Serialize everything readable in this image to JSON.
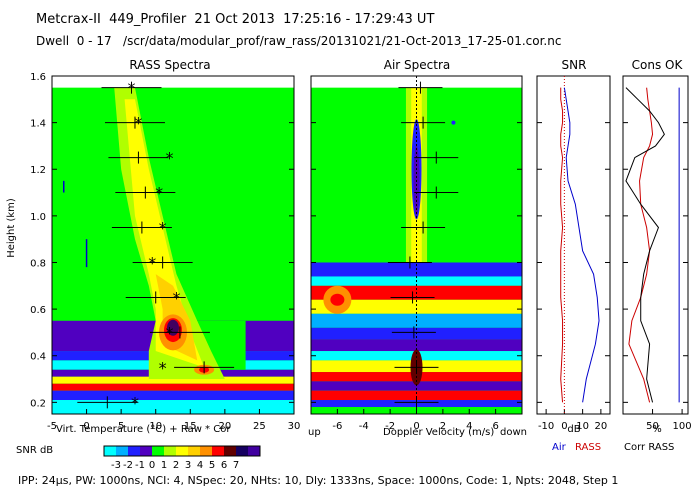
{
  "header": {
    "line1": "Metcrax-II  449_Profiler  21 Oct 2013  17:25:16 - 17:29:43 UT",
    "line2": "Dwell  0 - 17   /scr/data/modular_prof/raw_rass/20131021/21-Oct-2013_17-25-01.cor.nc"
  },
  "footer": "IPP: 24μs, PW: 1000ns, NCI: 4, NSpec: 20, NHts: 10, Dly: 1333ns, Space: 1000ns, Code: 1, Npts: 2048, Step 1",
  "chart_data": [
    {
      "type": "heatmap",
      "title": "RASS Spectra",
      "ylabel": "Height (km)",
      "xlabel": "Virt. Temperature (°C)  + Raw  * Cor",
      "xlim": [
        -5,
        30
      ],
      "ylim": [
        0.15,
        1.6
      ],
      "xticks": [
        "-5",
        "0",
        "5",
        "10",
        "15",
        "20",
        "25",
        "30"
      ],
      "yticks": [
        "0.2",
        "0.4",
        "0.6",
        "0.8",
        "1.0",
        "1.2",
        "1.4",
        "1.6"
      ],
      "raw": [
        {
          "height": 1.55,
          "temp": 6.5
        },
        {
          "height": 1.4,
          "temp": 7.0
        },
        {
          "height": 1.25,
          "temp": 7.5
        },
        {
          "height": 1.1,
          "temp": 8.5
        },
        {
          "height": 0.95,
          "temp": 8.0
        },
        {
          "height": 0.8,
          "temp": 11.0
        },
        {
          "height": 0.65,
          "temp": 10.0
        },
        {
          "height": 0.5,
          "temp": 13.5
        },
        {
          "height": 0.35,
          "temp": 17.0
        },
        {
          "height": 0.2,
          "temp": 3.0
        }
      ],
      "cor": [
        {
          "height": 1.55,
          "temp": 6.5
        },
        {
          "height": 1.4,
          "temp": 7.5
        },
        {
          "height": 1.25,
          "temp": 12.0
        },
        {
          "height": 1.1,
          "temp": 10.5
        },
        {
          "height": 0.95,
          "temp": 11.0
        },
        {
          "height": 0.8,
          "temp": 9.5
        },
        {
          "height": 0.65,
          "temp": 13.0
        },
        {
          "height": 0.5,
          "temp": 12.0
        },
        {
          "height": 0.35,
          "temp": 11.0
        },
        {
          "height": 0.2,
          "temp": 7.0
        }
      ]
    },
    {
      "type": "heatmap",
      "title": "Air Spectra",
      "xlabel": "Doppler Velocity (m/s)",
      "xlabel_left": "up",
      "xlabel_right": "down",
      "xlim": [
        -8,
        8
      ],
      "ylim": [
        0.15,
        1.6
      ],
      "xticks": [
        "-6",
        "-4",
        "-2",
        "0",
        "2",
        "4",
        "6"
      ],
      "air_points": [
        {
          "height": 1.55,
          "vel": 0.3
        },
        {
          "height": 1.4,
          "vel": 0.5
        },
        {
          "height": 1.25,
          "vel": 1.5
        },
        {
          "height": 1.1,
          "vel": 1.5
        },
        {
          "height": 0.95,
          "vel": 0.5
        },
        {
          "height": 0.8,
          "vel": -0.5
        },
        {
          "height": 0.65,
          "vel": -0.3
        },
        {
          "height": 0.5,
          "vel": -0.2
        },
        {
          "height": 0.35,
          "vel": 0.0
        },
        {
          "height": 0.2,
          "vel": 0.0
        }
      ]
    },
    {
      "type": "line",
      "title": "SNR",
      "xlabel": "dB",
      "xlim": [
        -15,
        25
      ],
      "xticks": [
        "-10",
        "0",
        "10",
        "20"
      ],
      "series": [
        {
          "name": "Air",
          "color": "#0000cc",
          "x": [
            0,
            1,
            2,
            3,
            3,
            2,
            1,
            2,
            6,
            8,
            10,
            16,
            18,
            19,
            17,
            12,
            10
          ],
          "y": [
            1.55,
            1.5,
            1.45,
            1.4,
            1.35,
            1.3,
            1.25,
            1.15,
            1.05,
            0.95,
            0.85,
            0.75,
            0.65,
            0.55,
            0.45,
            0.3,
            0.2
          ]
        },
        {
          "name": "RASS",
          "color": "#cc0000",
          "x": [
            -2,
            -2,
            -1,
            -1,
            -2,
            -2,
            -1,
            -2,
            -2,
            -1,
            -2,
            -2,
            -2,
            -1,
            -1,
            -2,
            -1
          ],
          "y": [
            1.55,
            1.5,
            1.45,
            1.4,
            1.35,
            1.3,
            1.25,
            1.15,
            1.05,
            0.95,
            0.85,
            0.75,
            0.65,
            0.55,
            0.45,
            0.3,
            0.2
          ]
        }
      ],
      "legend": [
        "Air",
        "RASS"
      ]
    },
    {
      "type": "line",
      "title": "Cons OK",
      "xlabel": "%",
      "xlim": [
        0,
        110
      ],
      "xticks": [
        "50",
        "100"
      ],
      "series": [
        {
          "name": "Air",
          "color": "#0000cc",
          "x": [
            95,
            95,
            95,
            95,
            95,
            95,
            95,
            95,
            95,
            95,
            95,
            95,
            95,
            95,
            95,
            95,
            95
          ],
          "y": [
            1.55,
            1.5,
            1.45,
            1.4,
            1.35,
            1.3,
            1.25,
            1.15,
            1.05,
            0.95,
            0.85,
            0.75,
            0.65,
            0.55,
            0.45,
            0.3,
            0.2
          ]
        },
        {
          "name": "RASS",
          "color": "#cc0000",
          "x": [
            40,
            42,
            45,
            48,
            50,
            45,
            35,
            28,
            30,
            40,
            45,
            40,
            30,
            15,
            10,
            35,
            45
          ],
          "y": [
            1.55,
            1.5,
            1.45,
            1.4,
            1.35,
            1.3,
            1.25,
            1.15,
            1.05,
            0.95,
            0.85,
            0.75,
            0.65,
            0.55,
            0.45,
            0.3,
            0.2
          ]
        },
        {
          "name": "Corr RASS",
          "color": "#000000",
          "x": [
            5,
            25,
            45,
            60,
            70,
            55,
            20,
            5,
            30,
            60,
            45,
            35,
            30,
            30,
            45,
            40,
            50
          ],
          "y": [
            1.55,
            1.5,
            1.45,
            1.4,
            1.35,
            1.3,
            1.25,
            1.15,
            1.05,
            0.95,
            0.85,
            0.75,
            0.65,
            0.55,
            0.45,
            0.3,
            0.2
          ]
        }
      ],
      "legend": [
        "Corr RASS"
      ]
    }
  ],
  "colorbar": {
    "label": "SNR dB",
    "ticks": [
      "-3",
      "-2",
      "-1",
      "0",
      "1",
      "2",
      "3",
      "4",
      "5",
      "6",
      "7"
    ],
    "colors": [
      "#00ffff",
      "#00b0ff",
      "#2020ff",
      "#5000c0",
      "#00ff00",
      "#b0ff00",
      "#ffff00",
      "#ffd000",
      "#ff9000",
      "#ff0000",
      "#600000",
      "#150060",
      "#4000a0"
    ]
  }
}
